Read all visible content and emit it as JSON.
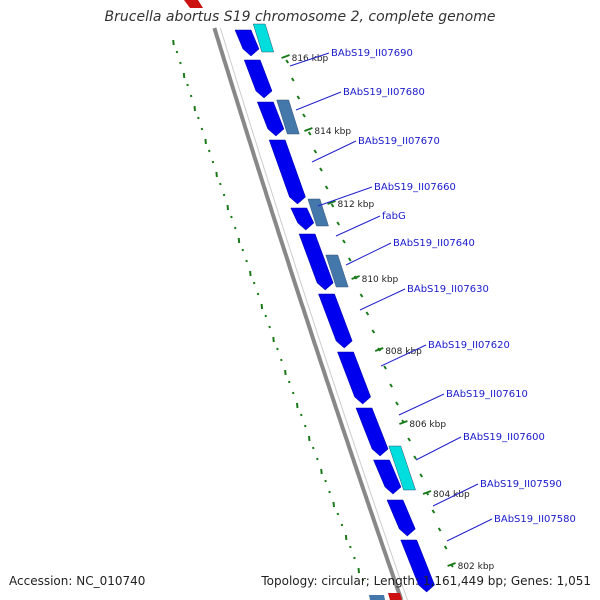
{
  "title": "Brucella abortus S19 chromosome 2, complete genome",
  "footer": {
    "accession": "Accession: NC_010740",
    "summary": "Topology: circular; Length: 1,161,449 bp; Genes: 1,051"
  },
  "colors": {
    "cds_forward": "#0000ee",
    "cds_other": "#4477aa",
    "rna": "#00dddd",
    "backbone": "#888888",
    "gc_dots": "#1a7a1a",
    "label_text": "#1a1acc"
  },
  "genes": [
    {
      "label": "BAbS19_II07690"
    },
    {
      "label": "BAbS19_II07680"
    },
    {
      "label": "BAbS19_II07670"
    },
    {
      "label": "BAbS19_II07660"
    },
    {
      "label": "fabG"
    },
    {
      "label": "BAbS19_II07640"
    },
    {
      "label": "BAbS19_II07630"
    },
    {
      "label": "BAbS19_II07620"
    },
    {
      "label": "BAbS19_II07610"
    },
    {
      "label": "BAbS19_II07600"
    },
    {
      "label": "BAbS19_II07590"
    },
    {
      "label": "BAbS19_II07580"
    }
  ],
  "ticks": [
    {
      "label": "816 kbp"
    },
    {
      "label": "814 kbp"
    },
    {
      "label": "812 kbp"
    },
    {
      "label": "810 kbp"
    },
    {
      "label": "808 kbp"
    },
    {
      "label": "806 kbp"
    },
    {
      "label": "804 kbp"
    },
    {
      "label": "802 kbp"
    }
  ]
}
